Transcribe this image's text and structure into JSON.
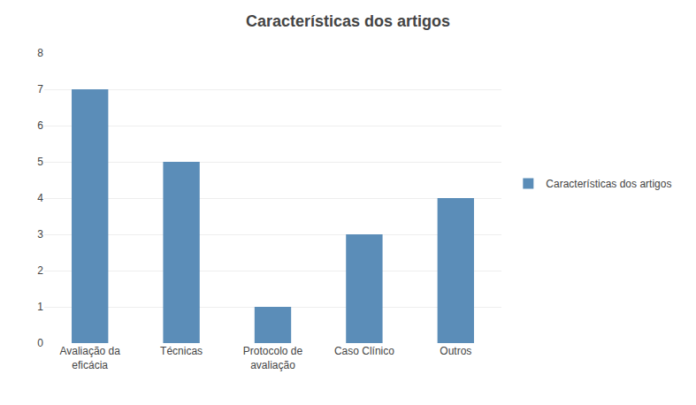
{
  "chart_data": {
    "type": "bar",
    "title": "Características dos artigos",
    "categories": [
      "Avaliação da\neficácia",
      "Técnicas",
      "Protocolo de\navaliação",
      "Caso Clínico",
      "Outros"
    ],
    "series": [
      {
        "name": "Características dos artigos",
        "color": "#5b8db8",
        "values": [
          7,
          5,
          1,
          3,
          4
        ]
      }
    ],
    "ylim": [
      0,
      8
    ],
    "yticks": [
      0,
      1,
      2,
      3,
      4,
      5,
      6,
      7,
      8
    ],
    "grid": true,
    "legend": "right"
  }
}
